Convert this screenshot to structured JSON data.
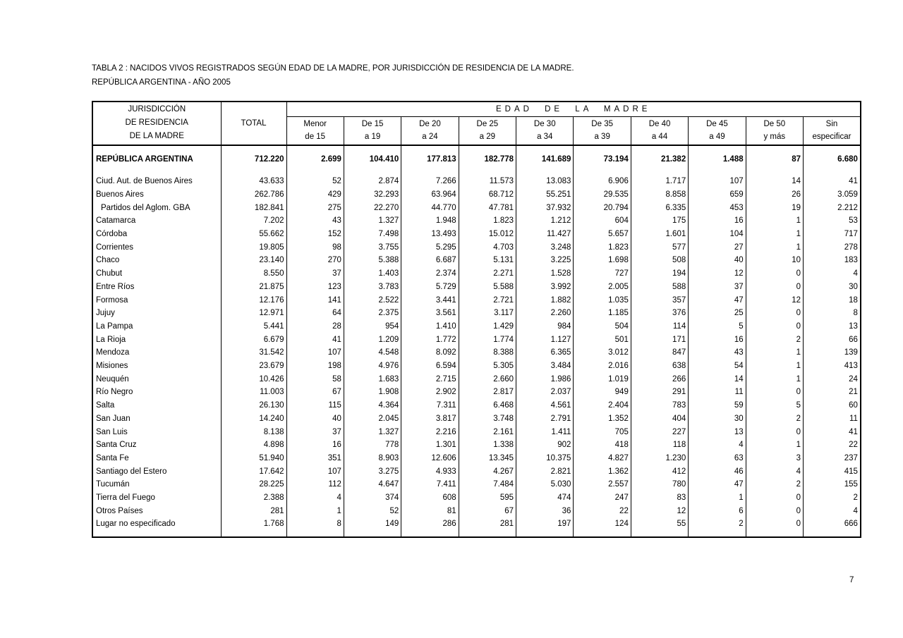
{
  "title": {
    "line1": "TABLA 2 : NACIDOS VIVOS REGISTRADOS SEGÚN EDAD DE LA MADRE, POR JURISDICCIÓN DE RESIDENCIA  DE LA MADRE.",
    "line2": "REPÚBLICA ARGENTINA  -  AÑO 2005"
  },
  "page_number": "7",
  "table": {
    "header": {
      "jurisdiction_lines": [
        "JURISDICCIÓN",
        "DE RESIDENCIA",
        "DE LA MADRE"
      ],
      "total_label": "TOTAL",
      "age_group_title": "EDAD DE LA MADRE",
      "age_columns": [
        {
          "line1": "Menor",
          "line2": "de 15"
        },
        {
          "line1": "De 15",
          "line2": "a 19"
        },
        {
          "line1": "De 20",
          "line2": "a 24"
        },
        {
          "line1": "De 25",
          "line2": "a 29"
        },
        {
          "line1": "De 30",
          "line2": "a 34"
        },
        {
          "line1": "De 35",
          "line2": "a 39"
        },
        {
          "line1": "De 40",
          "line2": "a 44"
        },
        {
          "line1": "De 45",
          "line2": "a 49"
        },
        {
          "line1": "De 50",
          "line2": "y más"
        },
        {
          "line1": "Sin",
          "line2": "especificar"
        }
      ]
    },
    "rows": [
      {
        "name": "REPÚBLICA ARGENTINA",
        "style": "total",
        "values": [
          "712.220",
          "2.699",
          "104.410",
          "177.813",
          "182.778",
          "141.689",
          "73.194",
          "21.382",
          "1.488",
          "87",
          "6.680"
        ]
      },
      {
        "name": "Ciud. Aut. de  Buenos Aires",
        "values": [
          "43.633",
          "52",
          "2.874",
          "7.266",
          "11.573",
          "13.083",
          "6.906",
          "1.717",
          "107",
          "14",
          "41"
        ]
      },
      {
        "name": "Buenos Aires",
        "values": [
          "262.786",
          "429",
          "32.293",
          "63.964",
          "68.712",
          "55.251",
          "29.535",
          "8.858",
          "659",
          "26",
          "3.059"
        ]
      },
      {
        "name": "Partidos del Aglom. GBA",
        "style": "indent",
        "values": [
          "182.841",
          "275",
          "22.270",
          "44.770",
          "47.781",
          "37.932",
          "20.794",
          "6.335",
          "453",
          "19",
          "2.212"
        ]
      },
      {
        "name": "Catamarca",
        "values": [
          "7.202",
          "43",
          "1.327",
          "1.948",
          "1.823",
          "1.212",
          "604",
          "175",
          "16",
          "1",
          "53"
        ]
      },
      {
        "name": "Córdoba",
        "values": [
          "55.662",
          "152",
          "7.498",
          "13.493",
          "15.012",
          "11.427",
          "5.657",
          "1.601",
          "104",
          "1",
          "717"
        ]
      },
      {
        "name": "Corrientes",
        "values": [
          "19.805",
          "98",
          "3.755",
          "5.295",
          "4.703",
          "3.248",
          "1.823",
          "577",
          "27",
          "1",
          "278"
        ]
      },
      {
        "name": "Chaco",
        "values": [
          "23.140",
          "270",
          "5.388",
          "6.687",
          "5.131",
          "3.225",
          "1.698",
          "508",
          "40",
          "10",
          "183"
        ]
      },
      {
        "name": "Chubut",
        "values": [
          "8.550",
          "37",
          "1.403",
          "2.374",
          "2.271",
          "1.528",
          "727",
          "194",
          "12",
          "0",
          "4"
        ]
      },
      {
        "name": "Entre Ríos",
        "values": [
          "21.875",
          "123",
          "3.783",
          "5.729",
          "5.588",
          "3.992",
          "2.005",
          "588",
          "37",
          "0",
          "30"
        ]
      },
      {
        "name": "Formosa",
        "values": [
          "12.176",
          "141",
          "2.522",
          "3.441",
          "2.721",
          "1.882",
          "1.035",
          "357",
          "47",
          "12",
          "18"
        ]
      },
      {
        "name": "Jujuy",
        "values": [
          "12.971",
          "64",
          "2.375",
          "3.561",
          "3.117",
          "2.260",
          "1.185",
          "376",
          "25",
          "0",
          "8"
        ]
      },
      {
        "name": "La Pampa",
        "values": [
          "5.441",
          "28",
          "954",
          "1.410",
          "1.429",
          "984",
          "504",
          "114",
          "5",
          "0",
          "13"
        ]
      },
      {
        "name": "La Rioja",
        "values": [
          "6.679",
          "41",
          "1.209",
          "1.772",
          "1.774",
          "1.127",
          "501",
          "171",
          "16",
          "2",
          "66"
        ]
      },
      {
        "name": "Mendoza",
        "values": [
          "31.542",
          "107",
          "4.548",
          "8.092",
          "8.388",
          "6.365",
          "3.012",
          "847",
          "43",
          "1",
          "139"
        ]
      },
      {
        "name": "Misiones",
        "values": [
          "23.679",
          "198",
          "4.976",
          "6.594",
          "5.305",
          "3.484",
          "2.016",
          "638",
          "54",
          "1",
          "413"
        ]
      },
      {
        "name": "Neuquén",
        "values": [
          "10.426",
          "58",
          "1.683",
          "2.715",
          "2.660",
          "1.986",
          "1.019",
          "266",
          "14",
          "1",
          "24"
        ]
      },
      {
        "name": "Río Negro",
        "values": [
          "11.003",
          "67",
          "1.908",
          "2.902",
          "2.817",
          "2.037",
          "949",
          "291",
          "11",
          "0",
          "21"
        ]
      },
      {
        "name": "Salta",
        "values": [
          "26.130",
          "115",
          "4.364",
          "7.311",
          "6.468",
          "4.561",
          "2.404",
          "783",
          "59",
          "5",
          "60"
        ]
      },
      {
        "name": "San Juan",
        "values": [
          "14.240",
          "40",
          "2.045",
          "3.817",
          "3.748",
          "2.791",
          "1.352",
          "404",
          "30",
          "2",
          "11"
        ]
      },
      {
        "name": "San Luis",
        "values": [
          "8.138",
          "37",
          "1.327",
          "2.216",
          "2.161",
          "1.411",
          "705",
          "227",
          "13",
          "0",
          "41"
        ]
      },
      {
        "name": "Santa Cruz",
        "values": [
          "4.898",
          "16",
          "778",
          "1.301",
          "1.338",
          "902",
          "418",
          "118",
          "4",
          "1",
          "22"
        ]
      },
      {
        "name": "Santa Fe",
        "values": [
          "51.940",
          "351",
          "8.903",
          "12.606",
          "13.345",
          "10.375",
          "4.827",
          "1.230",
          "63",
          "3",
          "237"
        ]
      },
      {
        "name": "Santiago del Estero",
        "values": [
          "17.642",
          "107",
          "3.275",
          "4.933",
          "4.267",
          "2.821",
          "1.362",
          "412",
          "46",
          "4",
          "415"
        ]
      },
      {
        "name": "Tucumán",
        "values": [
          "28.225",
          "112",
          "4.647",
          "7.411",
          "7.484",
          "5.030",
          "2.557",
          "780",
          "47",
          "2",
          "155"
        ]
      },
      {
        "name": "Tierra del Fuego",
        "values": [
          "2.388",
          "4",
          "374",
          "608",
          "595",
          "474",
          "247",
          "83",
          "1",
          "0",
          "2"
        ]
      },
      {
        "name": "Otros Países",
        "values": [
          "281",
          "1",
          "52",
          "81",
          "67",
          "36",
          "22",
          "12",
          "6",
          "0",
          "4"
        ]
      },
      {
        "name": "Lugar no especificado",
        "values": [
          "1.768",
          "8",
          "149",
          "286",
          "281",
          "197",
          "124",
          "55",
          "2",
          "0",
          "666"
        ]
      }
    ]
  }
}
